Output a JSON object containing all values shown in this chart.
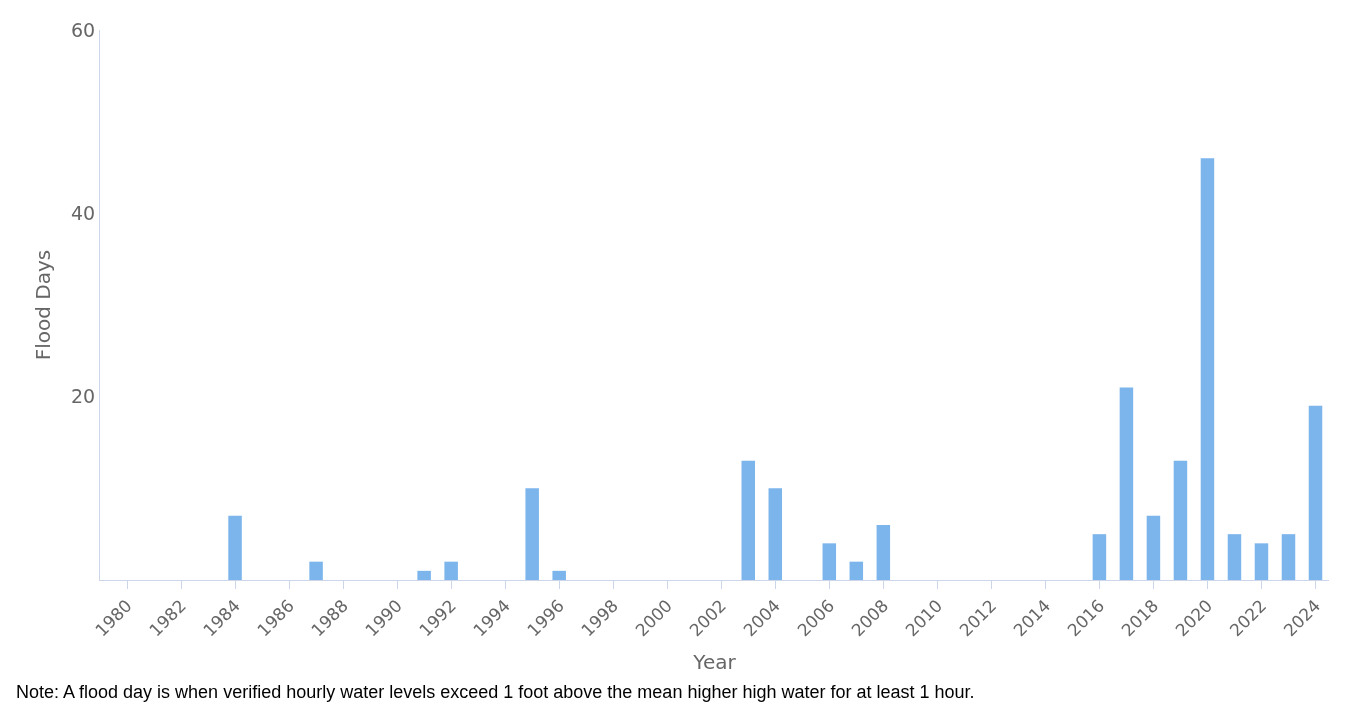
{
  "chart_data": {
    "type": "bar",
    "xlabel": "Year",
    "ylabel": "Flood Days",
    "categories": [
      "1980",
      null,
      "1982",
      null,
      "1984",
      null,
      "1986",
      null,
      "1988",
      null,
      "1990",
      null,
      "1992",
      null,
      "1994",
      null,
      "1996",
      null,
      "1998",
      null,
      "2000",
      null,
      "2002",
      null,
      "2004",
      null,
      "2006",
      null,
      "2008",
      null,
      "2010",
      null,
      "2012",
      null,
      "2014",
      null,
      "2016",
      null,
      "2018",
      null,
      "2020",
      null,
      "2022",
      null,
      "2024"
    ],
    "values": [
      0,
      0,
      0,
      0,
      7,
      0,
      0,
      2,
      0,
      0,
      0,
      1,
      2,
      0,
      0,
      10,
      1,
      0,
      0,
      0,
      0,
      0,
      0,
      13,
      10,
      0,
      4,
      2,
      6,
      0,
      0,
      0,
      0,
      0,
      0,
      0,
      5,
      21,
      7,
      13,
      46,
      5,
      4,
      5,
      19
    ],
    "color": "#7cb5ec",
    "ylim": [
      0,
      60
    ],
    "yticks": [
      20,
      40,
      60
    ],
    "annotations": [
      "Note: A flood day is when verified hourly water levels exceed 1 foot above the mean higher high water for at least 1 hour."
    ]
  }
}
